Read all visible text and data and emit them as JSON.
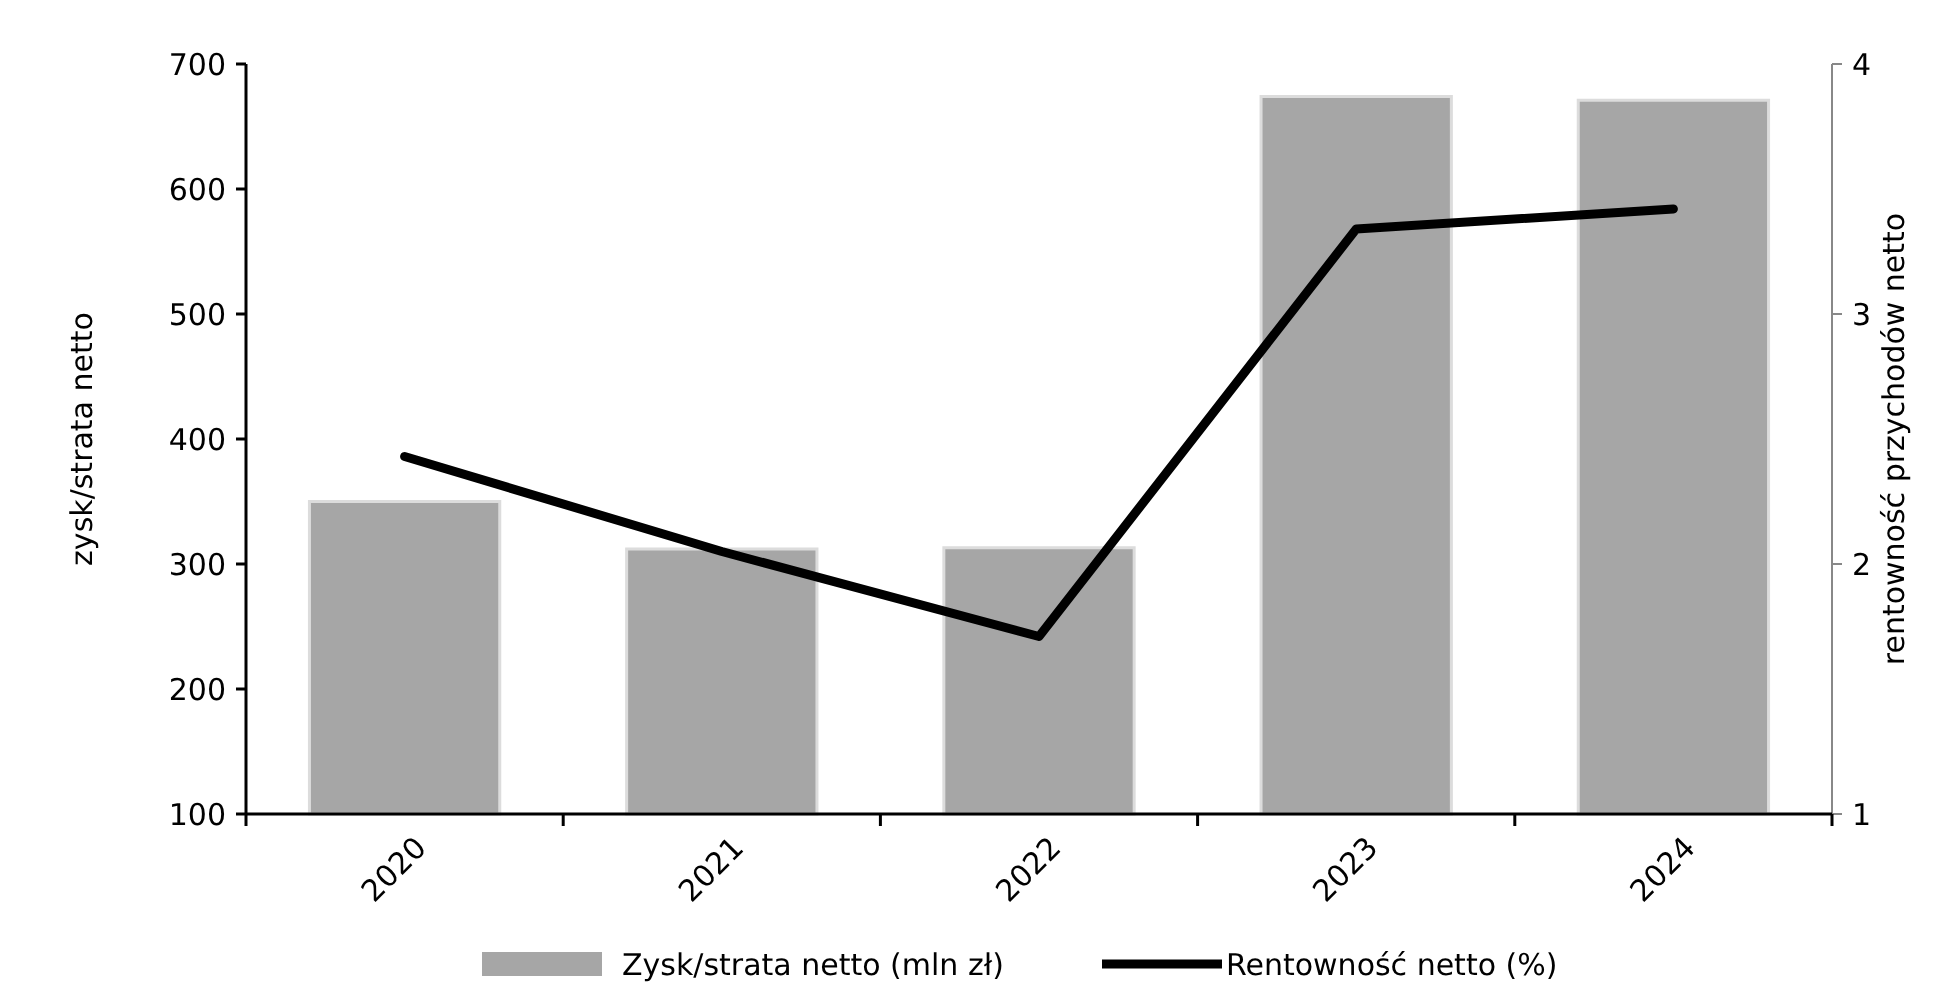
{
  "chart_data": {
    "type": "bar",
    "categories": [
      "2020",
      "2021",
      "2022",
      "2023",
      "2024"
    ],
    "ylabel": "zysk/strata netto",
    "y2label": "rentowność przychodów netto",
    "ylim": [
      100,
      700
    ],
    "yticks": [
      100,
      200,
      300,
      400,
      500,
      600,
      700
    ],
    "y2lim": [
      1,
      4
    ],
    "y2ticks": [
      1,
      2,
      3,
      4
    ],
    "series": [
      {
        "name": "Zysk/strata netto (mln zł)",
        "color": "#a6a6a6",
        "values": [
          350,
          312,
          313,
          674,
          671
        ]
      },
      {
        "name": "Rentowność netto (%)",
        "type": "line",
        "axis": "y2",
        "color": "#000000",
        "values": [
          2.43,
          2.05,
          1.71,
          3.34,
          3.42
        ]
      }
    ],
    "legend": "bottom",
    "grid": false,
    "marker": "none",
    "line_style": "solid"
  }
}
